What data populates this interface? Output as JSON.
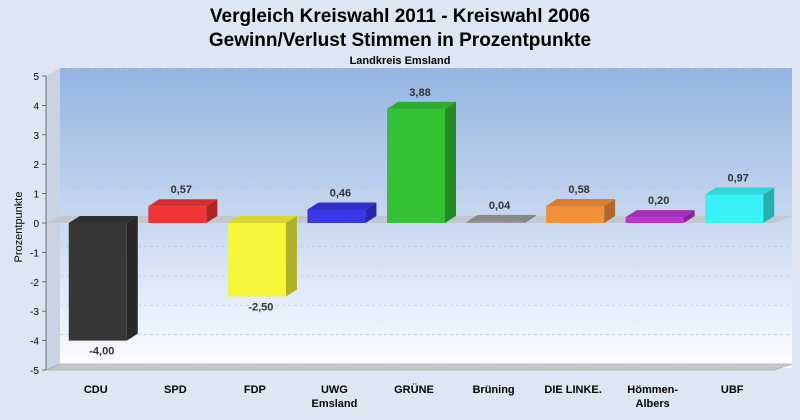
{
  "chart_data": {
    "type": "bar",
    "title": [
      "Vergleich Kreiswahl 2011 - Kreiswahl 2006",
      "Gewinn/Verlust Stimmen in Prozentpunkte"
    ],
    "subtitle": "Landkreis Emsland",
    "ylabel": "Prozentpunkte",
    "xlabel": "",
    "ylim": [
      -5,
      5
    ],
    "yticks": [
      5,
      4,
      3,
      2,
      1,
      0,
      -1,
      -2,
      -3,
      -4,
      -5
    ],
    "grid": true,
    "legend": "none",
    "categories": [
      [
        "CDU"
      ],
      [
        "SPD"
      ],
      [
        "FDP"
      ],
      [
        "UWG",
        "Emsland"
      ],
      [
        "GRÜNE"
      ],
      [
        "Brüning"
      ],
      [
        "DIE LINKE."
      ],
      [
        "Hömmen-",
        "Albers"
      ],
      [
        "UBF"
      ]
    ],
    "values": [
      -4.0,
      0.57,
      -2.5,
      0.46,
      3.88,
      0.04,
      0.58,
      0.2,
      0.97
    ],
    "value_labels": [
      "-4,00",
      "0,57",
      "-2,50",
      "0,46",
      "3,88",
      "0,04",
      "0,58",
      "0,20",
      "0,97"
    ],
    "colors": [
      "#363636",
      "#ef3535",
      "#f5f53a",
      "#3838e6",
      "#33c233",
      "#9a9a9a",
      "#f2903a",
      "#b836cf",
      "#38f2f5"
    ]
  }
}
